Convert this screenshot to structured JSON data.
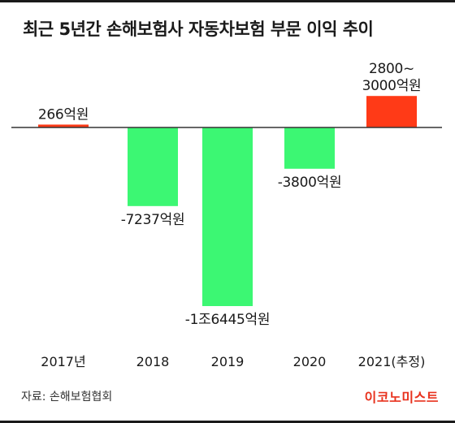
{
  "title": "최근 5년간 손해보험사 자동차보험 부문 이익 추이",
  "source": "자료: 손해보험협회",
  "brand": "이코노미스트",
  "colors": {
    "positive": "#ff3a17",
    "negative": "#3cf773",
    "axis": "#333333",
    "text": "#1a1a1a"
  },
  "chart_data": {
    "type": "bar",
    "unit": "억원",
    "categories": [
      "2017년",
      "2018",
      "2019",
      "2020",
      "2021(추정)"
    ],
    "values": [
      266,
      -7237,
      -16445,
      -3800,
      2900
    ],
    "value_labels": [
      "266억원",
      "-7237억원",
      "-1조6445억원",
      "-3800억원",
      [
        "2800~",
        "3000억원"
      ]
    ],
    "ylim": [
      -16445,
      3000
    ]
  }
}
